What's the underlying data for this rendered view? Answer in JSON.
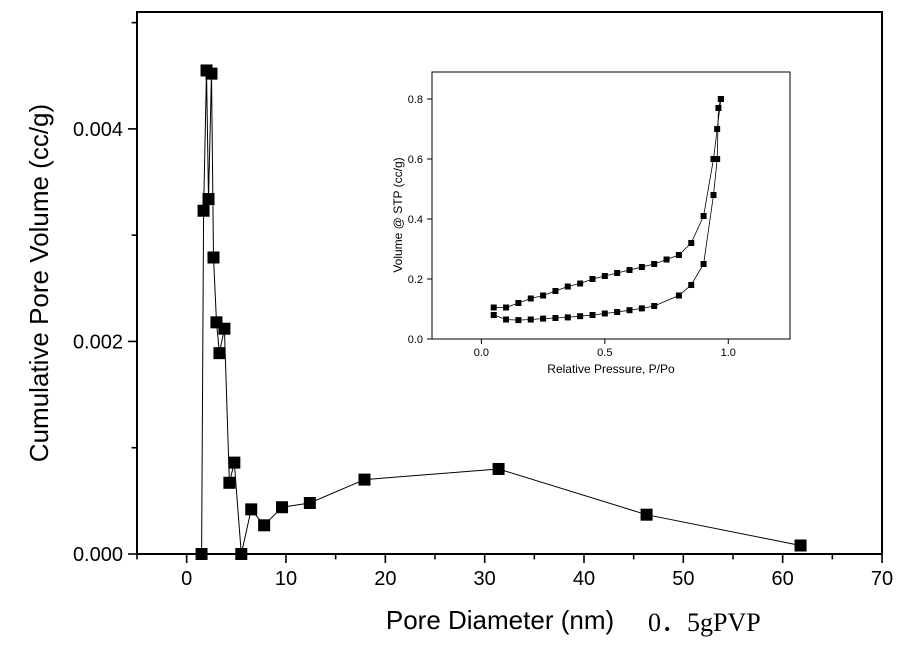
{
  "chart_data": [
    {
      "type": "line",
      "xlabel": "Pore Diameter (nm)",
      "ylabel": "Cumulative Pore Volume (cc/g)",
      "xlim": [
        -5,
        70
      ],
      "ylim": [
        0,
        0.0051
      ],
      "xticks": [
        0,
        10,
        20,
        30,
        40,
        50,
        60,
        70
      ],
      "xtick_labels": [
        "0",
        "10",
        "20",
        "30",
        "40",
        "50",
        "60",
        "70"
      ],
      "yticks": [
        0.0,
        0.002,
        0.004
      ],
      "ytick_labels": [
        "0.000",
        "0.002",
        "0.004"
      ],
      "grid": false,
      "marker": "square",
      "annotation": "0．5gPVP",
      "series": [
        {
          "x": [
            1.5,
            1.7,
            2.0,
            2.2,
            2.5,
            2.7,
            3.0,
            3.3,
            3.8,
            4.3,
            4.8,
            5.5,
            6.5,
            7.8,
            9.6,
            12.4,
            17.9,
            31.4,
            46.3,
            61.8
          ],
          "y": [
            0.0,
            0.00323,
            0.00455,
            0.00334,
            0.00452,
            0.00279,
            0.00218,
            0.00189,
            0.00212,
            0.00067,
            0.00086,
            0.0,
            0.00042,
            0.00027,
            0.00044,
            0.00048,
            0.0007,
            0.0008,
            0.00037,
            8e-05
          ]
        }
      ]
    },
    {
      "type": "line",
      "xlabel": "Relative Pressure, P/Po",
      "ylabel": "Volume @ STP (cc/g)",
      "xlim": [
        -0.2,
        1.25
      ],
      "ylim": [
        0,
        0.89
      ],
      "xticks": [
        0.0,
        0.5,
        1.0
      ],
      "xtick_labels": [
        "0.0",
        "0.5",
        "1.0"
      ],
      "yticks": [
        0.0,
        0.2,
        0.4,
        0.6,
        0.8
      ],
      "ytick_labels": [
        "0.0",
        "0.2",
        "0.4",
        "0.6",
        "0.8"
      ],
      "grid": false,
      "marker": "square",
      "series": [
        {
          "x": [
            0.05,
            0.1,
            0.15,
            0.2,
            0.25,
            0.3,
            0.35,
            0.4,
            0.45,
            0.5,
            0.55,
            0.6,
            0.65,
            0.7,
            0.8,
            0.85,
            0.9,
            0.94,
            0.955,
            0.96,
            0.97
          ],
          "y": [
            0.08,
            0.065,
            0.063,
            0.065,
            0.068,
            0.07,
            0.072,
            0.076,
            0.08,
            0.085,
            0.09,
            0.096,
            0.102,
            0.11,
            0.145,
            0.18,
            0.25,
            0.48,
            0.6,
            0.77,
            0.8
          ]
        },
        {
          "x": [
            0.97,
            0.955,
            0.94,
            0.9,
            0.85,
            0.8,
            0.75,
            0.7,
            0.65,
            0.6,
            0.55,
            0.5,
            0.45,
            0.4,
            0.35,
            0.3,
            0.25,
            0.2,
            0.15,
            0.1,
            0.05
          ],
          "y": [
            0.8,
            0.7,
            0.6,
            0.41,
            0.32,
            0.28,
            0.265,
            0.25,
            0.24,
            0.23,
            0.22,
            0.21,
            0.2,
            0.185,
            0.175,
            0.16,
            0.145,
            0.135,
            0.12,
            0.105,
            0.105
          ]
        }
      ]
    }
  ]
}
